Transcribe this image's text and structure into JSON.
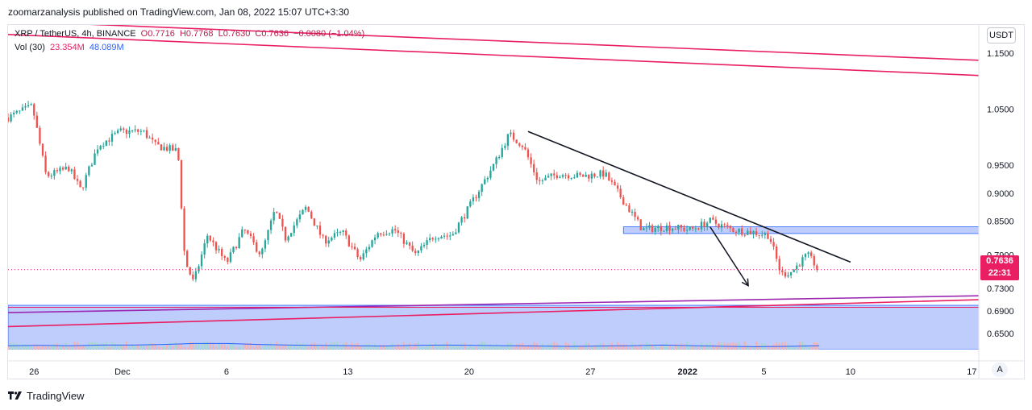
{
  "header": {
    "published": "zoomarzanalysis published on TradingView.com, Jan 08, 2022 15:07 UTC+3:30"
  },
  "legend": {
    "symbol": "XRP / TetherUS, 4h, BINANCE",
    "open": "O0.7716",
    "high": "H0.7768",
    "low": "L0.7630",
    "close": "C0.7636",
    "change": "−0.0080 (−1.04%)",
    "volume_label": "Vol (30)",
    "volume_value": "23.354M",
    "volume_ma": "48.089M"
  },
  "currency_button": "USDT",
  "auto_button": "A",
  "price_badge": {
    "price": "0.7636",
    "countdown": "22:31"
  },
  "footer": {
    "brand": "TradingView"
  },
  "colors": {
    "up": "#26a69a",
    "down": "#ef5350",
    "trendline_pink": "#e91e63",
    "trendline_black": "#131722",
    "zone_fill": "#bfcdfc",
    "zone_border": "#2962ff",
    "purple": "#9c27b0"
  },
  "chart_data": {
    "type": "candlestick",
    "title": "XRP / TetherUS, 4h, BINANCE",
    "ylim": [
      0.621,
      1.2
    ],
    "yticks": [
      {
        "label": "1.1500",
        "value": 1.15
      },
      {
        "label": "1.0500",
        "value": 1.05
      },
      {
        "label": "0.9500",
        "value": 0.95
      },
      {
        "label": "0.9000",
        "value": 0.9
      },
      {
        "label": "0.8500",
        "value": 0.85
      },
      {
        "label": "0.7900",
        "value": 0.79
      },
      {
        "label": "0.7300",
        "value": 0.73
      },
      {
        "label": "0.6900",
        "value": 0.69
      },
      {
        "label": "0.6500",
        "value": 0.65
      }
    ],
    "xlim": [
      0,
      56
    ],
    "xticks": [
      {
        "label": "26",
        "day": 1.5
      },
      {
        "label": "Dec",
        "day": 6.6
      },
      {
        "label": "6",
        "day": 12.6
      },
      {
        "label": "13",
        "day": 19.6
      },
      {
        "label": "20",
        "day": 26.6
      },
      {
        "label": "27",
        "day": 33.6
      },
      {
        "label": "2022",
        "day": 39.2
      },
      {
        "label": "5",
        "day": 43.6
      },
      {
        "label": "10",
        "day": 48.6
      },
      {
        "label": "17",
        "day": 55.6
      }
    ],
    "path": [
      [
        0,
        1.035
      ],
      [
        1.4,
        1.055
      ],
      [
        2.2,
        0.93
      ],
      [
        3.5,
        0.945
      ],
      [
        4.2,
        0.905
      ],
      [
        5.2,
        0.985
      ],
      [
        6.5,
        1.01
      ],
      [
        7.8,
        1.01
      ],
      [
        8.5,
        0.985
      ],
      [
        9.8,
        0.975
      ],
      [
        10.2,
        0.78
      ],
      [
        10.7,
        0.74
      ],
      [
        11.5,
        0.825
      ],
      [
        12.6,
        0.775
      ],
      [
        13.6,
        0.835
      ],
      [
        14.6,
        0.79
      ],
      [
        15.4,
        0.87
      ],
      [
        16.0,
        0.82
      ],
      [
        17.2,
        0.875
      ],
      [
        18.2,
        0.815
      ],
      [
        19.3,
        0.83
      ],
      [
        20.3,
        0.78
      ],
      [
        21.3,
        0.83
      ],
      [
        22.3,
        0.835
      ],
      [
        23.5,
        0.79
      ],
      [
        24.6,
        0.825
      ],
      [
        25.6,
        0.825
      ],
      [
        26.5,
        0.87
      ],
      [
        28.1,
        0.955
      ],
      [
        28.9,
        1.005
      ],
      [
        29.7,
        0.985
      ],
      [
        30.6,
        0.92
      ],
      [
        31.8,
        0.935
      ],
      [
        33.0,
        0.93
      ],
      [
        34.4,
        0.935
      ],
      [
        35.2,
        0.9
      ],
      [
        36.6,
        0.835
      ],
      [
        38.0,
        0.84
      ],
      [
        39.4,
        0.835
      ],
      [
        40.5,
        0.85
      ],
      [
        41.8,
        0.835
      ],
      [
        43.0,
        0.83
      ],
      [
        43.9,
        0.825
      ],
      [
        44.6,
        0.755
      ],
      [
        45.2,
        0.76
      ],
      [
        46.1,
        0.79
      ],
      [
        46.8,
        0.7636
      ]
    ],
    "volume_ma": [
      0.012,
      0.013,
      0.012,
      0.014,
      0.014,
      0.016,
      0.019,
      0.019,
      0.016,
      0.014,
      0.013,
      0.012,
      0.011,
      0.013,
      0.014,
      0.013,
      0.012,
      0.011,
      0.01,
      0.011,
      0.012,
      0.014,
      0.012,
      0.01,
      0.009,
      0.01,
      0.012
    ],
    "zones": [
      {
        "from_day": 35.5,
        "to_day": 56,
        "low": 0.828,
        "high": 0.84
      },
      {
        "from_day": 0,
        "to_day": 56,
        "low": 0.621,
        "high": 0.7
      }
    ],
    "trendlines": [
      {
        "color": "pink",
        "from": [
          0,
          1.207
        ],
        "to": [
          56,
          1.137
        ]
      },
      {
        "color": "pink",
        "from": [
          0,
          1.183
        ],
        "to": [
          56,
          1.11
        ]
      },
      {
        "color": "black",
        "from": [
          30.0,
          1.01
        ],
        "to": [
          48.6,
          0.777
        ]
      },
      {
        "color": "purple",
        "from": [
          0,
          0.687
        ],
        "to": [
          56,
          0.717
        ]
      },
      {
        "color": "pink",
        "from": [
          0,
          0.662
        ],
        "to": [
          56,
          0.71
        ]
      },
      {
        "color": "pink",
        "from": [
          0,
          0.6965
        ],
        "to": [
          56,
          0.6965
        ],
        "thin": true
      }
    ],
    "arrows": [
      {
        "from": [
          40.5,
          0.84
        ],
        "to": [
          42.7,
          0.735
        ]
      }
    ],
    "last_price": 0.7636
  }
}
